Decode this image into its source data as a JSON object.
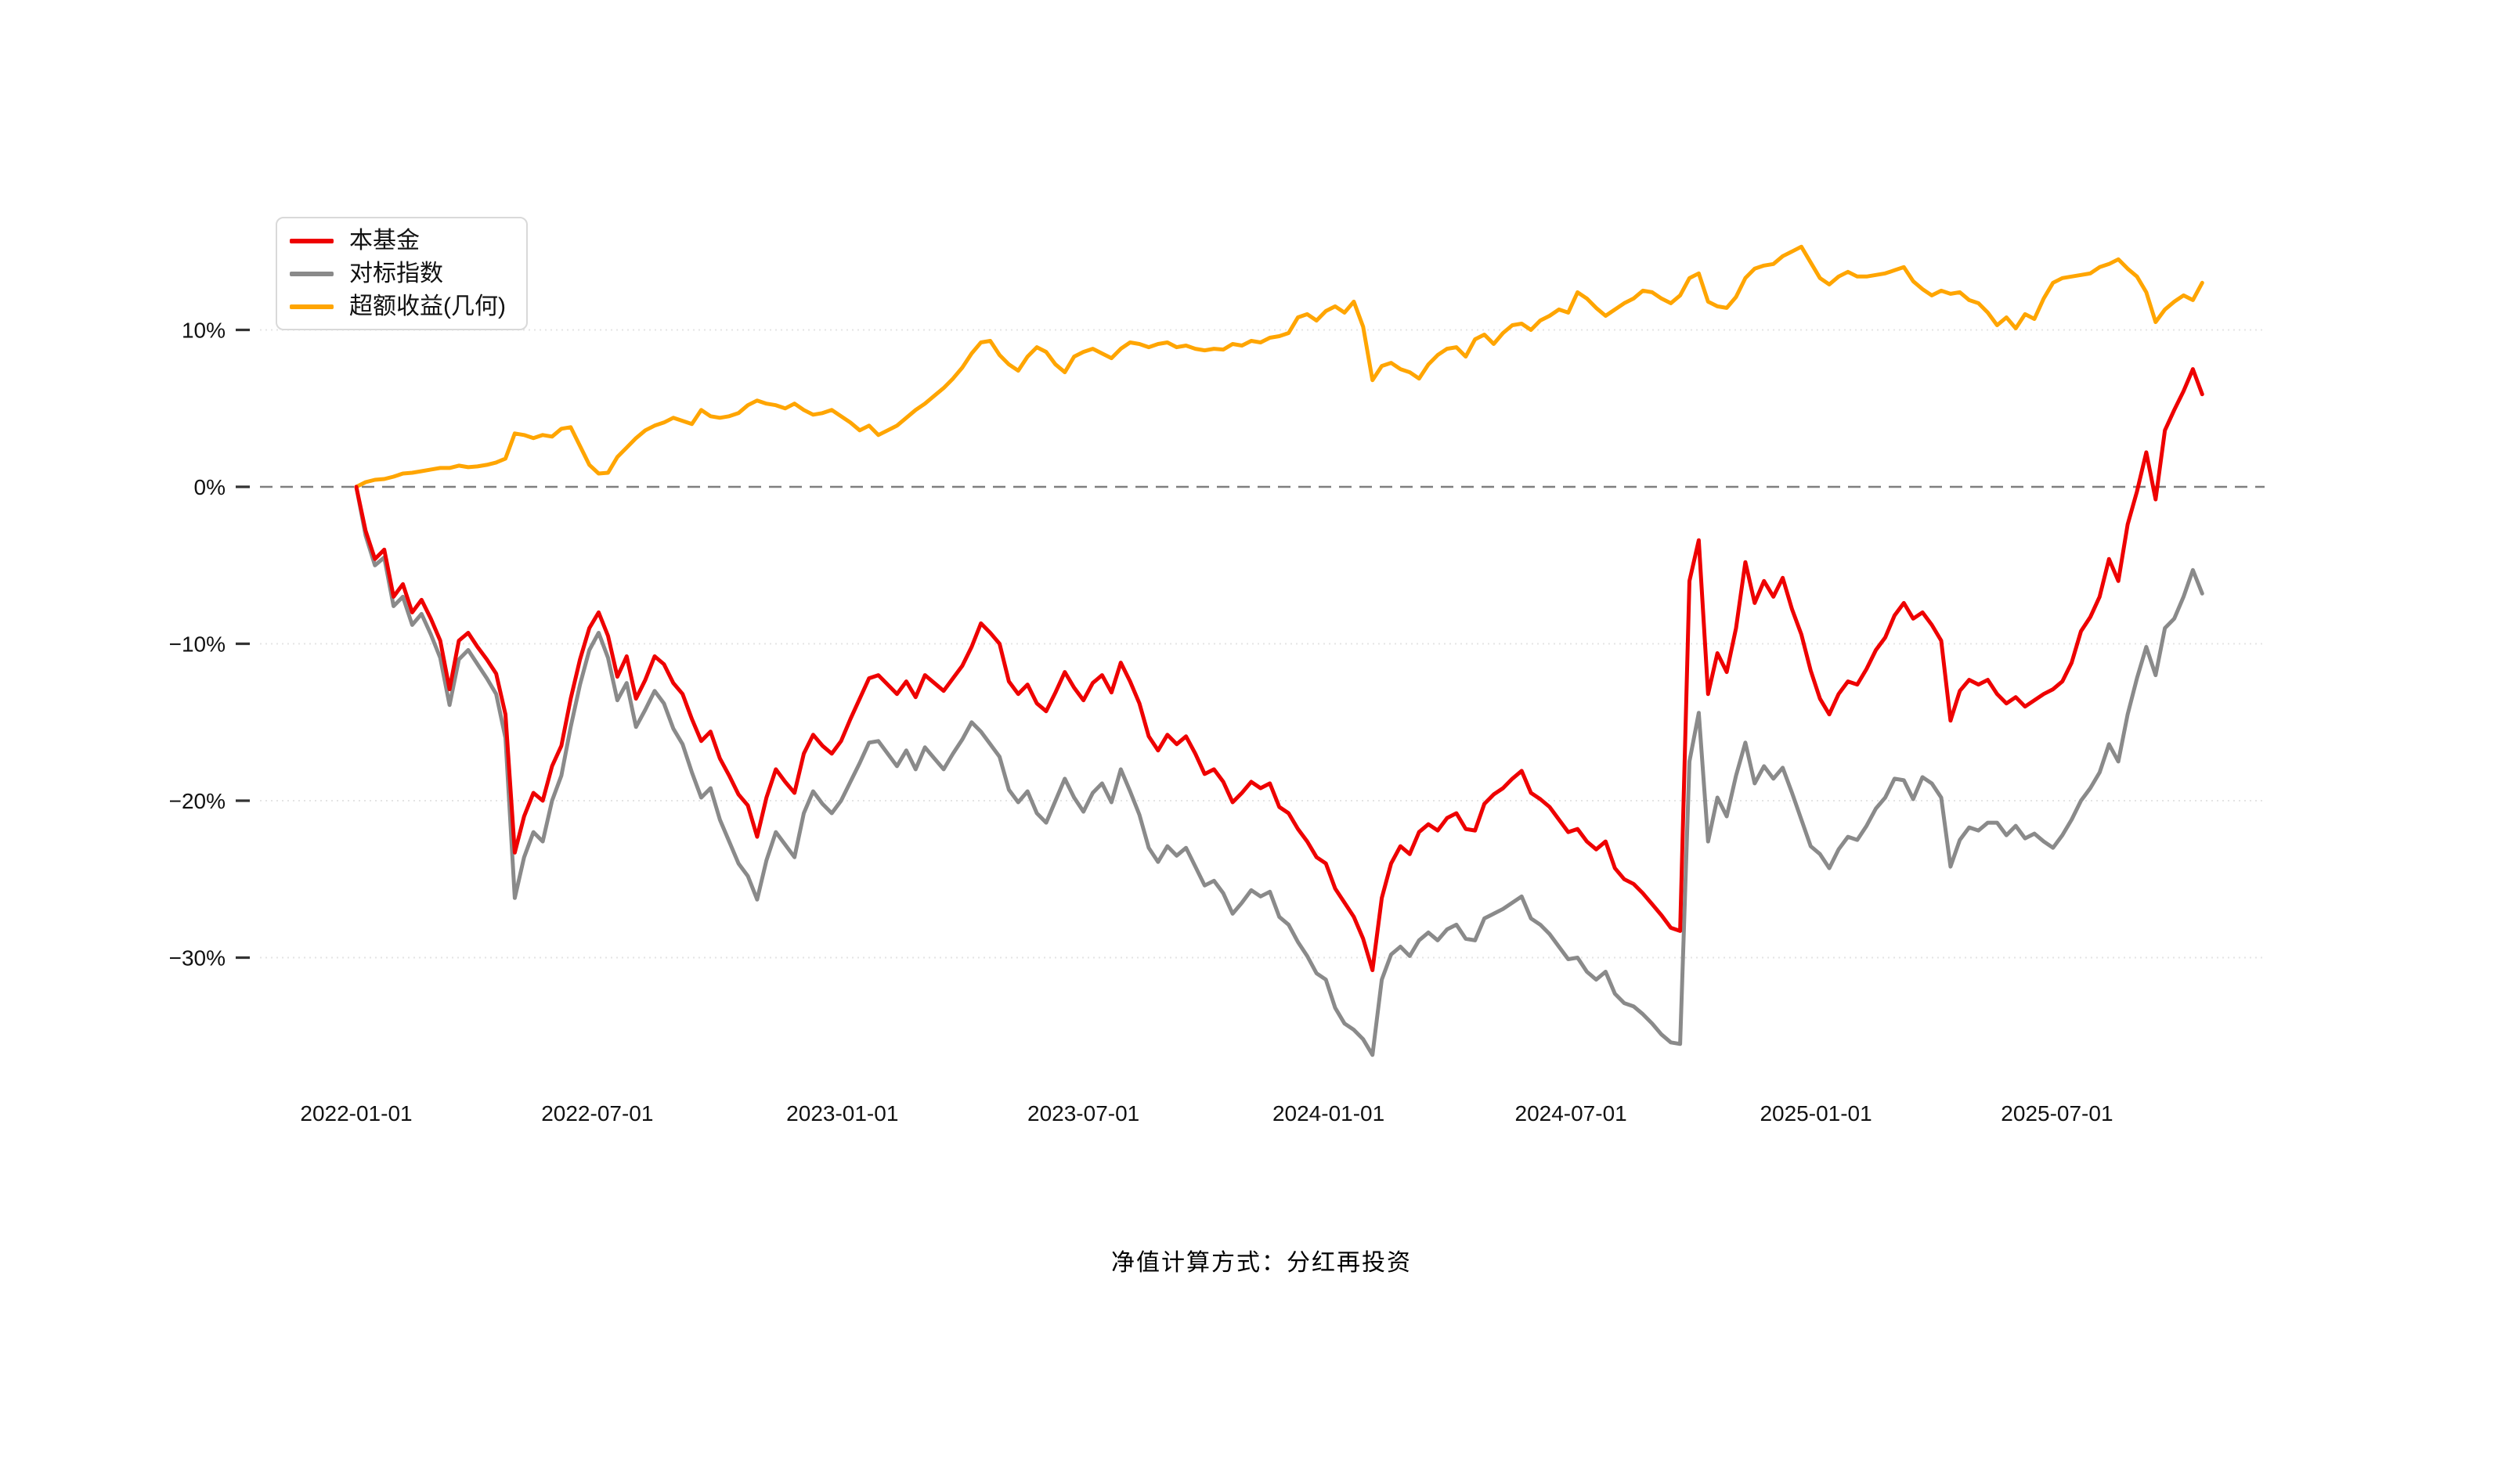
{
  "caption": "净值计算方式：分红再投资",
  "colors": {
    "background": "#ffffff",
    "fund_line": "#ee0000",
    "benchmark_line": "#8a8a8a",
    "excess_line": "#ffa500",
    "zero_line": "#7f7f7f",
    "gridline": "#e4e4e4",
    "tick_text": "#111111"
  },
  "chart_data": {
    "type": "line",
    "title": "",
    "xlabel": "",
    "ylabel": "",
    "unit": "%",
    "grid": true,
    "legend_position": "top-left",
    "start_date": "2022-01-01",
    "interval_days": 7,
    "zero_line_value": 0,
    "y_axis": {
      "tick_values": [
        10,
        0,
        -10,
        -20,
        -30
      ],
      "tick_labels": [
        "10%",
        "0%",
        "−10%",
        "−20%",
        "−30%"
      ],
      "range": [
        -38,
        16
      ]
    },
    "x_axis": {
      "tick_labels": [
        "2022-01-01",
        "2022-07-01",
        "2023-01-01",
        "2023-07-01",
        "2024-01-01",
        "2024-07-01",
        "2025-01-01",
        "2025-07-01"
      ],
      "tick_day_offsets": [
        0,
        181,
        365,
        546,
        730,
        912,
        1096,
        1277
      ]
    },
    "series": [
      {
        "name": "本基金",
        "color": "#ee0000",
        "values": [
          0.0,
          -2.8,
          -4.6,
          -4.0,
          -7.0,
          -6.2,
          -8.0,
          -7.2,
          -8.4,
          -9.8,
          -12.9,
          -9.8,
          -9.3,
          -10.2,
          -11.0,
          -11.9,
          -14.5,
          -23.3,
          -21.0,
          -19.5,
          -20.0,
          -17.8,
          -16.5,
          -13.5,
          -11.0,
          -9.0,
          -8.0,
          -9.5,
          -12.1,
          -10.8,
          -13.5,
          -12.3,
          -10.8,
          -11.3,
          -12.5,
          -13.2,
          -14.8,
          -16.2,
          -15.6,
          -17.3,
          -18.4,
          -19.6,
          -20.3,
          -22.3,
          -19.8,
          -18.0,
          -18.8,
          -19.5,
          -17.0,
          -15.8,
          -16.5,
          -17.0,
          -16.2,
          -14.8,
          -13.5,
          -12.2,
          -12.0,
          -12.6,
          -13.2,
          -12.4,
          -13.4,
          -12.0,
          -12.5,
          -13.0,
          -12.2,
          -11.4,
          -10.2,
          -8.7,
          -9.3,
          -10.0,
          -12.4,
          -13.2,
          -12.6,
          -13.8,
          -14.3,
          -13.1,
          -11.8,
          -12.8,
          -13.6,
          -12.5,
          -12.0,
          -13.1,
          -11.2,
          -12.4,
          -13.8,
          -15.9,
          -16.8,
          -15.8,
          -16.4,
          -15.9,
          -17.0,
          -18.3,
          -18.0,
          -18.8,
          -20.1,
          -19.5,
          -18.8,
          -19.2,
          -18.9,
          -20.4,
          -20.8,
          -21.8,
          -22.6,
          -23.6,
          -24.0,
          -25.6,
          -26.5,
          -27.4,
          -28.8,
          -30.8,
          -26.2,
          -24.0,
          -22.9,
          -23.4,
          -22.0,
          -21.5,
          -21.9,
          -21.1,
          -20.8,
          -21.8,
          -21.9,
          -20.2,
          -19.6,
          -19.2,
          -18.6,
          -18.1,
          -19.5,
          -19.9,
          -20.4,
          -21.2,
          -22.0,
          -21.8,
          -22.6,
          -23.1,
          -22.6,
          -24.3,
          -25.0,
          -25.3,
          -25.9,
          -26.6,
          -27.3,
          -28.1,
          -28.3,
          -6.0,
          -3.4,
          -13.2,
          -10.6,
          -11.8,
          -9.0,
          -4.8,
          -7.4,
          -6.0,
          -7.0,
          -5.8,
          -7.8,
          -9.4,
          -11.7,
          -13.5,
          -14.5,
          -13.2,
          -12.4,
          -12.6,
          -11.6,
          -10.4,
          -9.6,
          -8.2,
          -7.4,
          -8.4,
          -8.0,
          -8.8,
          -9.8,
          -14.9,
          -13.0,
          -12.3,
          -12.6,
          -12.3,
          -13.2,
          -13.8,
          -13.4,
          -14.0,
          -13.6,
          -13.2,
          -12.9,
          -12.4,
          -11.2,
          -9.2,
          -8.3,
          -7.0,
          -4.6,
          -6.0,
          -2.4,
          -0.3,
          2.2,
          -0.8,
          3.6,
          4.9,
          6.1,
          7.5,
          5.9
        ]
      },
      {
        "name": "对标指数",
        "color": "#8a8a8a",
        "values": [
          0.0,
          -3.1,
          -5.0,
          -4.5,
          -7.6,
          -7.0,
          -8.8,
          -8.1,
          -9.4,
          -10.9,
          -13.9,
          -11.0,
          -10.4,
          -11.3,
          -12.2,
          -13.2,
          -16.0,
          -26.2,
          -23.6,
          -22.0,
          -22.6,
          -20.0,
          -18.4,
          -15.3,
          -12.6,
          -10.4,
          -9.3,
          -10.9,
          -13.6,
          -12.5,
          -15.3,
          -14.2,
          -13.0,
          -13.8,
          -15.4,
          -16.4,
          -18.2,
          -19.8,
          -19.2,
          -21.2,
          -22.6,
          -24.0,
          -24.8,
          -26.3,
          -23.8,
          -22.0,
          -22.8,
          -23.6,
          -20.8,
          -19.4,
          -20.2,
          -20.8,
          -20.0,
          -18.8,
          -17.6,
          -16.3,
          -16.2,
          -17.0,
          -17.8,
          -16.8,
          -18.0,
          -16.6,
          -17.3,
          -18.0,
          -17.0,
          -16.1,
          -15.0,
          -15.6,
          -16.4,
          -17.2,
          -19.3,
          -20.1,
          -19.4,
          -20.8,
          -21.4,
          -20.0,
          -18.6,
          -19.8,
          -20.7,
          -19.5,
          -18.9,
          -20.1,
          -18.0,
          -19.4,
          -20.9,
          -23.0,
          -23.9,
          -22.9,
          -23.5,
          -23.0,
          -24.2,
          -25.4,
          -25.1,
          -25.9,
          -27.2,
          -26.5,
          -25.7,
          -26.1,
          -25.8,
          -27.4,
          -27.9,
          -29.0,
          -29.9,
          -31.0,
          -31.4,
          -33.2,
          -34.2,
          -34.6,
          -35.2,
          -36.2,
          -31.4,
          -29.8,
          -29.3,
          -29.9,
          -28.9,
          -28.4,
          -28.9,
          -28.2,
          -27.9,
          -28.8,
          -28.9,
          -27.5,
          -27.2,
          -26.9,
          -26.5,
          -26.1,
          -27.5,
          -27.9,
          -28.5,
          -29.3,
          -30.1,
          -30.0,
          -30.9,
          -31.4,
          -30.9,
          -32.3,
          -32.9,
          -33.1,
          -33.6,
          -34.2,
          -34.9,
          -35.4,
          -35.5,
          -17.5,
          -14.4,
          -22.6,
          -19.8,
          -21.0,
          -18.4,
          -16.3,
          -18.9,
          -17.8,
          -18.6,
          -17.9,
          -19.5,
          -21.2,
          -22.9,
          -23.4,
          -24.3,
          -23.1,
          -22.3,
          -22.5,
          -21.6,
          -20.5,
          -19.8,
          -18.6,
          -18.7,
          -19.9,
          -18.5,
          -18.9,
          -19.8,
          -24.2,
          -22.5,
          -21.7,
          -21.9,
          -21.4,
          -21.4,
          -22.2,
          -21.6,
          -22.4,
          -22.1,
          -22.6,
          -23.0,
          -22.2,
          -21.2,
          -20.0,
          -19.2,
          -18.2,
          -16.4,
          -17.5,
          -14.5,
          -12.2,
          -10.2,
          -12.0,
          -9.0,
          -8.4,
          -7.0,
          -5.3,
          -6.8
        ]
      },
      {
        "name": "超额收益(几何)",
        "color": "#ffa500",
        "values": [
          0.0,
          0.3,
          0.45,
          0.5,
          0.65,
          0.85,
          0.9,
          1.0,
          1.1,
          1.2,
          1.2,
          1.35,
          1.25,
          1.3,
          1.4,
          1.55,
          1.8,
          3.4,
          3.3,
          3.1,
          3.3,
          3.2,
          3.7,
          3.8,
          2.6,
          1.4,
          0.85,
          0.9,
          1.9,
          2.5,
          3.1,
          3.6,
          3.9,
          4.1,
          4.4,
          4.2,
          4.0,
          4.9,
          4.5,
          4.4,
          4.5,
          4.7,
          5.2,
          5.5,
          5.3,
          5.2,
          5.0,
          5.3,
          4.9,
          4.6,
          4.7,
          4.9,
          4.5,
          4.1,
          3.6,
          3.9,
          3.3,
          3.6,
          3.9,
          4.4,
          4.9,
          5.3,
          5.8,
          6.3,
          6.9,
          7.6,
          8.5,
          9.2,
          9.3,
          8.4,
          7.8,
          7.4,
          8.3,
          8.9,
          8.6,
          7.8,
          7.3,
          8.3,
          8.6,
          8.8,
          8.5,
          8.2,
          8.8,
          9.2,
          9.1,
          8.9,
          9.1,
          9.2,
          8.9,
          9.0,
          8.8,
          8.7,
          8.8,
          8.75,
          9.1,
          9.0,
          9.3,
          9.2,
          9.5,
          9.6,
          9.8,
          10.8,
          11.0,
          10.6,
          11.2,
          11.5,
          11.1,
          11.8,
          10.2,
          6.8,
          7.7,
          7.9,
          7.5,
          7.3,
          6.9,
          7.8,
          8.4,
          8.8,
          8.9,
          8.3,
          9.4,
          9.7,
          9.1,
          9.8,
          10.3,
          10.4,
          10.0,
          10.6,
          10.9,
          11.3,
          11.1,
          12.4,
          12.0,
          11.4,
          10.9,
          11.3,
          11.7,
          12.0,
          12.5,
          12.4,
          12.0,
          11.7,
          12.2,
          13.3,
          13.6,
          11.8,
          11.5,
          11.4,
          12.1,
          13.3,
          13.9,
          14.1,
          14.2,
          14.7,
          15.0,
          15.3,
          14.3,
          13.3,
          12.9,
          13.4,
          13.7,
          13.4,
          13.4,
          13.5,
          13.6,
          13.8,
          14.0,
          13.1,
          12.6,
          12.2,
          12.5,
          12.3,
          12.4,
          11.9,
          11.7,
          11.1,
          10.3,
          10.8,
          10.1,
          11.0,
          10.7,
          12.0,
          13.0,
          13.3,
          13.4,
          13.5,
          13.6,
          14.0,
          14.2,
          14.5,
          13.9,
          13.4,
          12.4,
          10.5,
          11.3,
          11.8,
          12.2,
          11.9,
          13.0
        ]
      }
    ]
  }
}
